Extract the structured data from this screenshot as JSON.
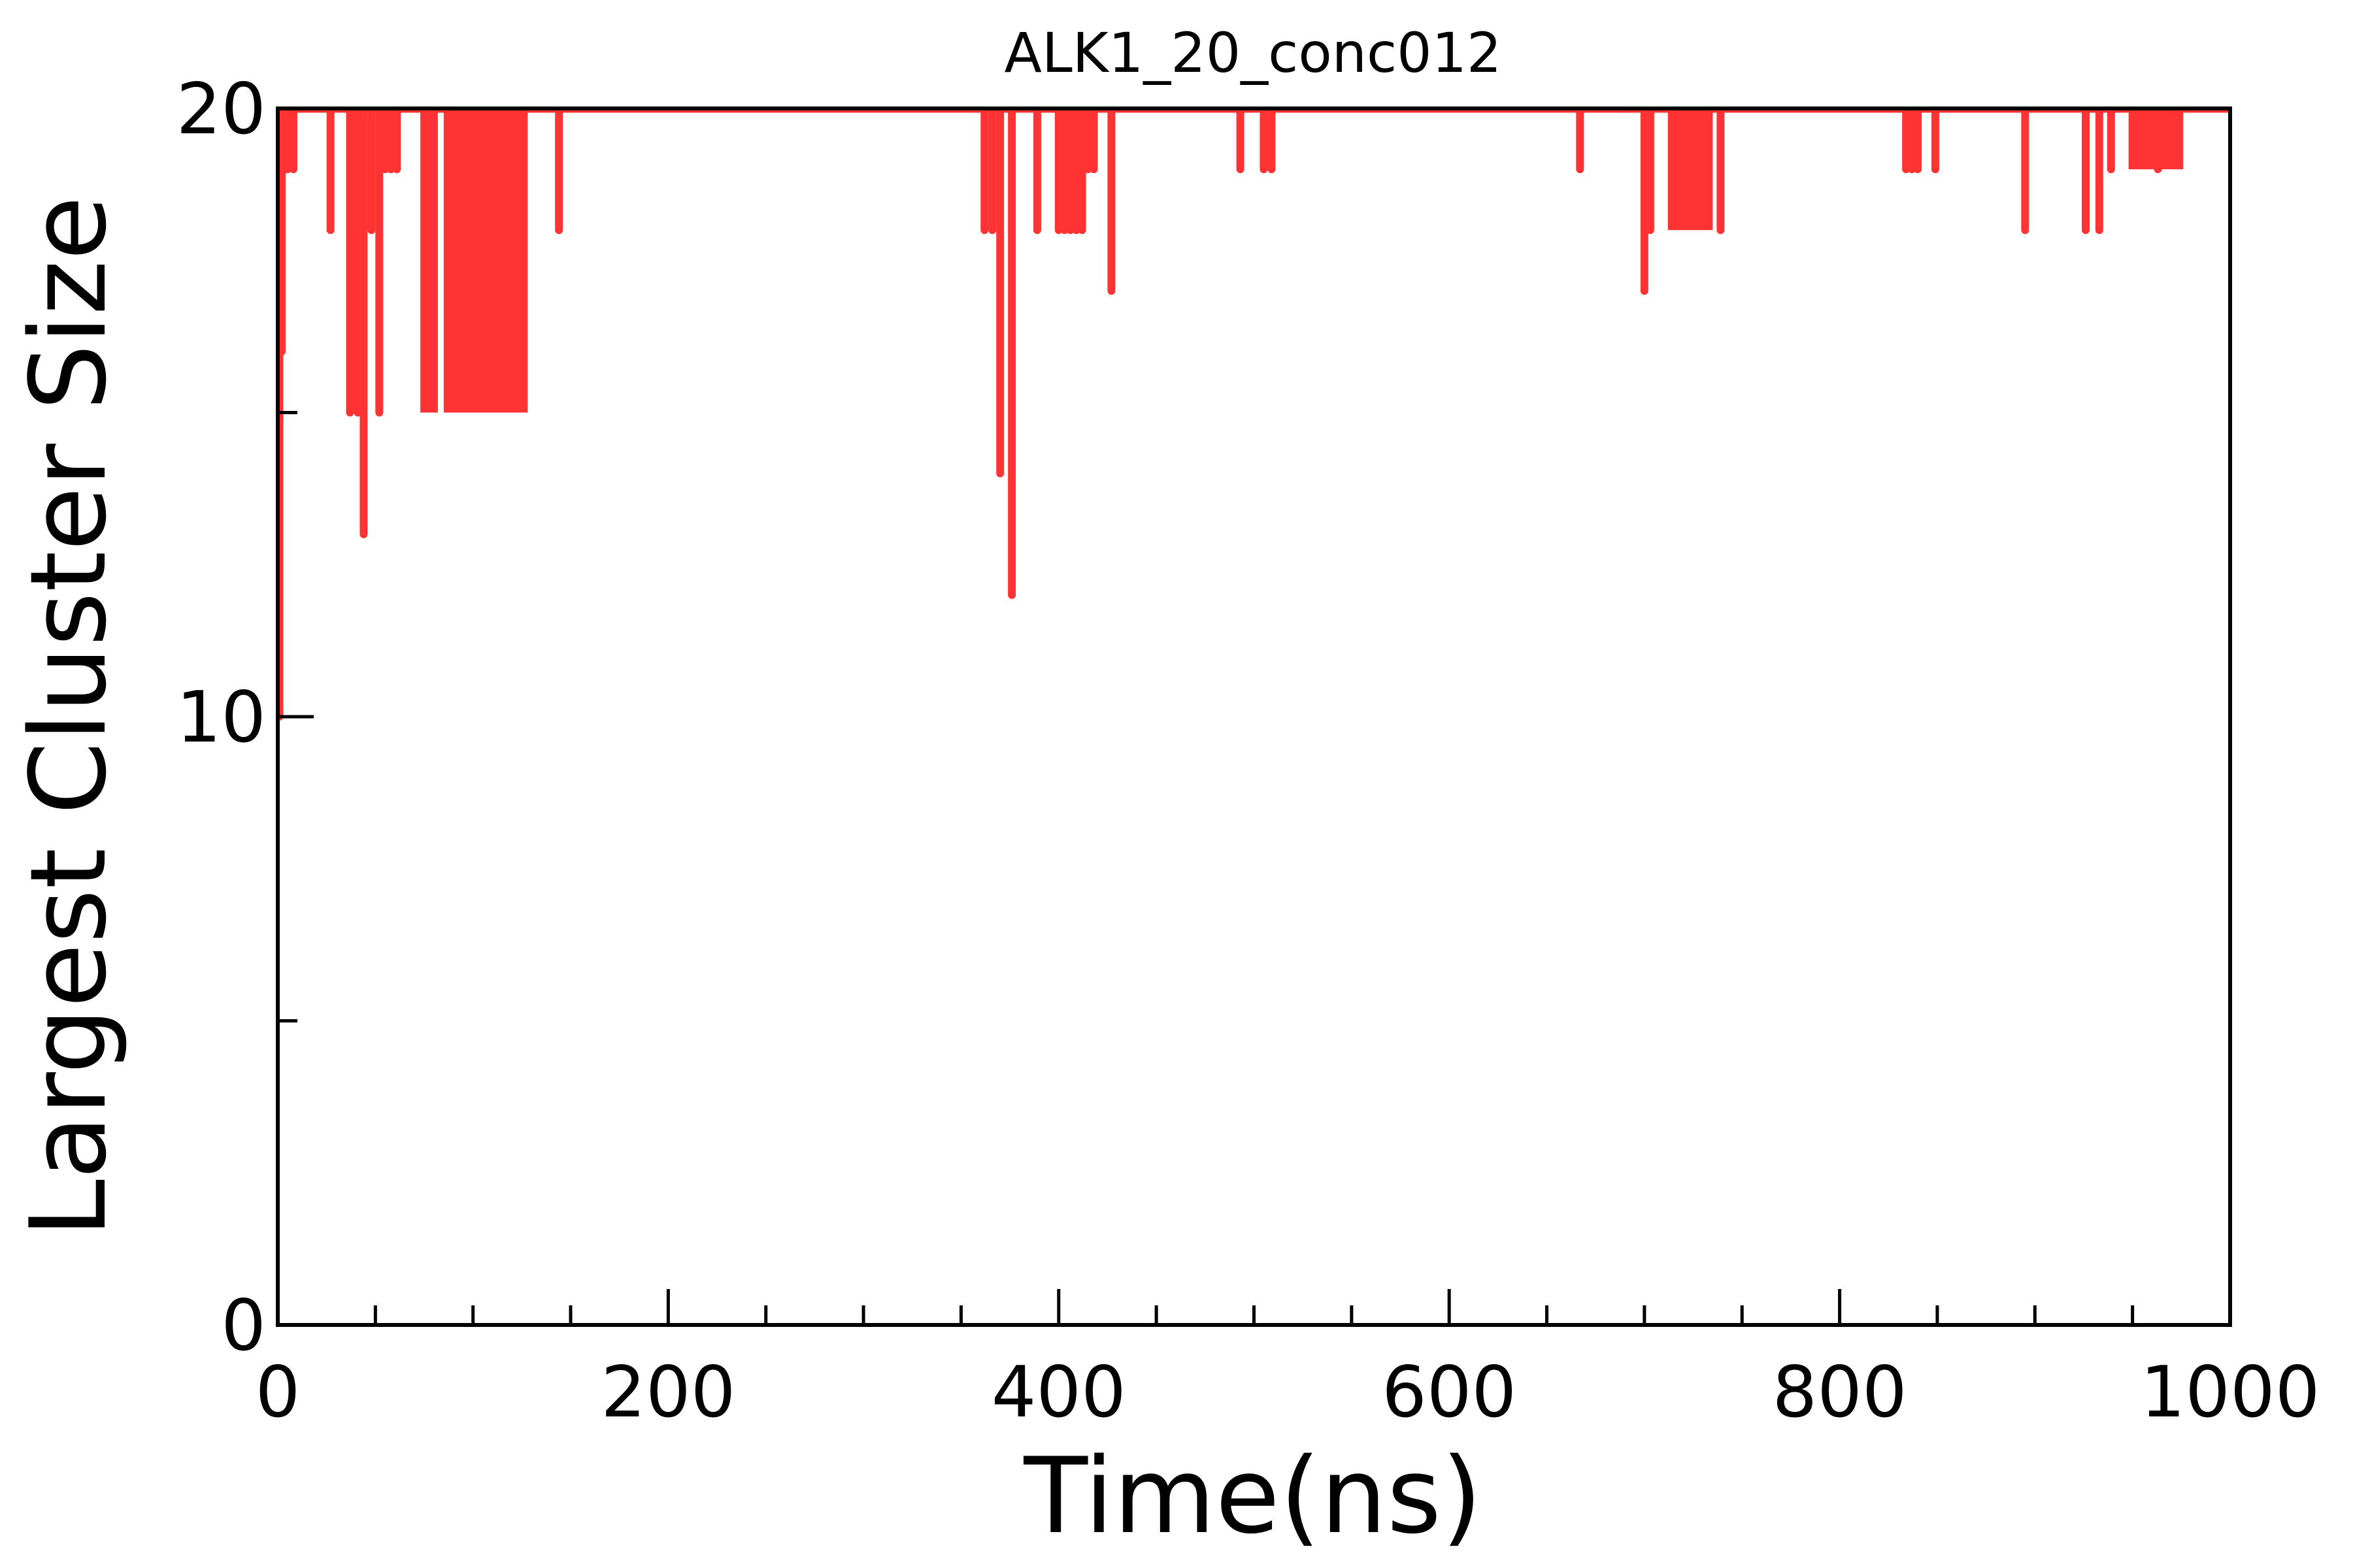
{
  "chart_data": {
    "type": "line",
    "title": "ALK1_20_conc012",
    "xlabel": "Time(ns)",
    "ylabel": "Largest Cluster Size",
    "xlim": [
      0,
      1000
    ],
    "ylim": [
      0,
      20
    ],
    "x_ticks": [
      0,
      200,
      400,
      600,
      800,
      1000
    ],
    "x_tick_labels": [
      "0",
      "200",
      "400",
      "600",
      "800",
      "1000"
    ],
    "x_minor_ticks": [
      50,
      100,
      150,
      250,
      300,
      350,
      450,
      500,
      550,
      650,
      700,
      750,
      850,
      900,
      950
    ],
    "y_ticks": [
      0,
      10,
      20
    ],
    "y_tick_labels": [
      "0",
      "10",
      "20"
    ],
    "y_minor_ticks": [
      5,
      15
    ],
    "grid": false,
    "legend": "none",
    "series_color": "#ff3333",
    "baseline": 20,
    "series": [
      {
        "dips": [
          {
            "x": 0.8,
            "y": 10
          },
          {
            "x": 2,
            "y": 16
          },
          {
            "x": 3.5,
            "y": 19
          },
          {
            "x": 5,
            "y": 19
          },
          {
            "x": 8,
            "y": 19
          },
          {
            "x": 27,
            "y": 18
          },
          {
            "x": 37,
            "y": 15
          },
          {
            "x": 41,
            "y": 15
          },
          {
            "x": 44,
            "y": 13
          },
          {
            "x": 48,
            "y": 18
          },
          {
            "x": 52,
            "y": 15
          },
          {
            "x": 55,
            "y": 19
          },
          {
            "x": 58,
            "y": 19
          },
          {
            "x": 61,
            "y": 19
          },
          {
            "x": 144,
            "y": 18
          },
          {
            "x": 362,
            "y": 18
          },
          {
            "x": 366,
            "y": 18
          },
          {
            "x": 370,
            "y": 14
          },
          {
            "x": 376,
            "y": 12
          },
          {
            "x": 389,
            "y": 18
          },
          {
            "x": 400,
            "y": 18
          },
          {
            "x": 403,
            "y": 18
          },
          {
            "x": 406,
            "y": 18
          },
          {
            "x": 409,
            "y": 18
          },
          {
            "x": 412,
            "y": 18
          },
          {
            "x": 415,
            "y": 19
          },
          {
            "x": 418,
            "y": 19
          },
          {
            "x": 427,
            "y": 17
          },
          {
            "x": 493,
            "y": 19
          },
          {
            "x": 505,
            "y": 19
          },
          {
            "x": 509,
            "y": 19
          },
          {
            "x": 667,
            "y": 19
          },
          {
            "x": 700,
            "y": 17
          },
          {
            "x": 703,
            "y": 18
          },
          {
            "x": 739,
            "y": 18
          },
          {
            "x": 834,
            "y": 19
          },
          {
            "x": 837,
            "y": 19
          },
          {
            "x": 840,
            "y": 19
          },
          {
            "x": 849,
            "y": 19
          },
          {
            "x": 895,
            "y": 18
          },
          {
            "x": 926,
            "y": 18
          },
          {
            "x": 933,
            "y": 18
          },
          {
            "x": 939,
            "y": 19
          },
          {
            "x": 963,
            "y": 19
          }
        ],
        "bands": [
          {
            "x0": 73,
            "x1": 82,
            "y": 15
          },
          {
            "x0": 85,
            "x1": 128,
            "y": 15
          },
          {
            "x0": 712,
            "x1": 735,
            "y": 18
          },
          {
            "x0": 948,
            "x1": 976,
            "y": 19
          }
        ]
      }
    ]
  }
}
